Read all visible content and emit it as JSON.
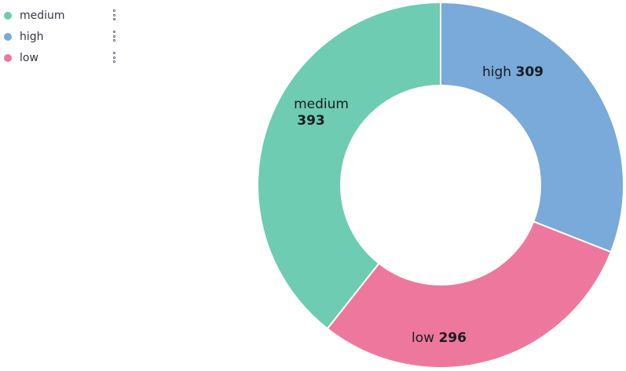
{
  "legend": {
    "items": [
      {
        "label": "medium",
        "color": "#6dccb1"
      },
      {
        "label": "high",
        "color": "#79aad9"
      },
      {
        "label": "low",
        "color": "#ee789d"
      }
    ]
  },
  "chart_data": {
    "type": "pie",
    "donut": true,
    "categories": [
      "high",
      "low",
      "medium"
    ],
    "values": [
      309,
      296,
      393
    ],
    "colors": [
      "#79aad9",
      "#ee789d",
      "#6dccb1"
    ],
    "legend_position": "top-left",
    "slice_labels": [
      "high 309",
      "low 296",
      "medium 393"
    ]
  }
}
